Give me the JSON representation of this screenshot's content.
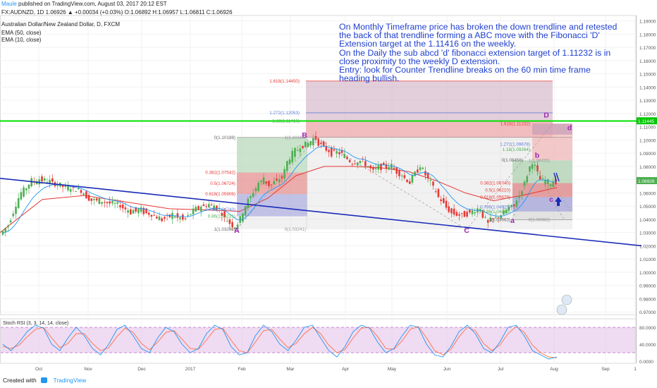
{
  "header": {
    "user": "Maule",
    "published": "published on TradingView.com, August 03, 2017 20:12 EST",
    "ohlc_line": "FX:AUDNZD, 1D  1.06926 ▲ +0.00034 (+0.03%) O:1.06892 H:1.06957 L:1.06811 C:1.06926"
  },
  "legend": {
    "symbol": "Australian Dollar/New Zealand Dollar, D, FXCM",
    "ema1": "EMA (50, close)",
    "ema2": "EMA (10, close)"
  },
  "annotation_lines": [
    "On Monthly Timeframe price has broken the down trendline and retested the back of that trendline forming a ABC move with the Fibonacci 'D' Extension target at the 1.11416 on the weekly.",
    "On the Daily the sub abcd 'd' fibonacci extension target of 1.11232 is in close proximity to the weekly D extension.",
    "Entry: look for Counter Trendline breaks on the 60 min time frame heading bullish."
  ],
  "footer": {
    "created_with": "Created with",
    "brand": "TradingView"
  },
  "colors": {
    "bull": "#4caf50",
    "bear": "#e53935",
    "ema50": "#e53935",
    "ema10": "#2196f3",
    "trend": "#1a2bb8",
    "green_line": "#00e000",
    "pattern": "#9c27b0",
    "rsi_k": "#2196f3",
    "rsi_d": "#ff7043"
  },
  "chart_data": [
    {
      "type": "candlestick",
      "symbol": "AUDNZD",
      "timeframe": "D",
      "y_axis_ticks": [
        "1.19000",
        "1.18000",
        "1.17000",
        "1.16000",
        "1.15000",
        "1.14000",
        "1.13000",
        "1.12000",
        "1.11000",
        "1.10000",
        "1.09000",
        "1.08000",
        "1.07000",
        "1.06000",
        "1.05000",
        "1.04000",
        "1.03000",
        "1.02000",
        "1.01000",
        "1.00000",
        "0.99000",
        "0.98000",
        "0.97000"
      ],
      "ylim": [
        0.968,
        1.194
      ],
      "x_axis_ticks": [
        "Oct",
        "Nov",
        "Dec",
        "2017",
        "Feb",
        "Mar",
        "Apr",
        "May",
        "Jun",
        "Jul",
        "Aug",
        "Sep"
      ],
      "last_price": "1.06926",
      "green_line_price": "1.11445",
      "price_path": [
        [
          0,
          1.027
        ],
        [
          12,
          1.035
        ],
        [
          30,
          1.058
        ],
        [
          45,
          1.068
        ],
        [
          60,
          1.07
        ],
        [
          75,
          1.068
        ],
        [
          95,
          1.064
        ],
        [
          115,
          1.062
        ],
        [
          130,
          1.055
        ],
        [
          150,
          1.053
        ],
        [
          170,
          1.051
        ],
        [
          185,
          1.046
        ],
        [
          200,
          1.047
        ],
        [
          215,
          1.044
        ],
        [
          230,
          1.04
        ],
        [
          245,
          1.043
        ],
        [
          262,
          1.04
        ],
        [
          280,
          1.048
        ],
        [
          295,
          1.051
        ],
        [
          310,
          1.049
        ],
        [
          322,
          1.04
        ],
        [
          335,
          1.034
        ],
        [
          342,
          1.04
        ],
        [
          350,
          1.05
        ],
        [
          358,
          1.058
        ],
        [
          366,
          1.065
        ],
        [
          374,
          1.07
        ],
        [
          384,
          1.066
        ],
        [
          394,
          1.069
        ],
        [
          402,
          1.072
        ],
        [
          409,
          1.083
        ],
        [
          418,
          1.09
        ],
        [
          428,
          1.095
        ],
        [
          438,
          1.097
        ],
        [
          448,
          1.101
        ],
        [
          457,
          1.096
        ],
        [
          470,
          1.091
        ],
        [
          485,
          1.09
        ],
        [
          500,
          1.083
        ],
        [
          515,
          1.084
        ],
        [
          530,
          1.077
        ],
        [
          542,
          1.08
        ],
        [
          555,
          1.08
        ],
        [
          568,
          1.075
        ],
        [
          582,
          1.068
        ],
        [
          597,
          1.08
        ],
        [
          611,
          1.069
        ],
        [
          625,
          1.056
        ],
        [
          640,
          1.046
        ],
        [
          654,
          1.043
        ],
        [
          668,
          1.045
        ],
        [
          681,
          1.048
        ],
        [
          692,
          1.038
        ],
        [
          700,
          1.04
        ],
        [
          712,
          1.043
        ],
        [
          722,
          1.048
        ],
        [
          730,
          1.05
        ],
        [
          738,
          1.058
        ],
        [
          746,
          1.068
        ],
        [
          752,
          1.078
        ],
        [
          756,
          1.082
        ],
        [
          761,
          1.079
        ],
        [
          767,
          1.071
        ],
        [
          774,
          1.069
        ],
        [
          782,
          1.067
        ],
        [
          790,
          1.069
        ]
      ],
      "ema50_path": [
        [
          0,
          1.03
        ],
        [
          60,
          1.055
        ],
        [
          120,
          1.058
        ],
        [
          180,
          1.053
        ],
        [
          240,
          1.048
        ],
        [
          300,
          1.047
        ],
        [
          340,
          1.046
        ],
        [
          380,
          1.056
        ],
        [
          420,
          1.073
        ],
        [
          460,
          1.08
        ],
        [
          500,
          1.08
        ],
        [
          540,
          1.079
        ],
        [
          580,
          1.076
        ],
        [
          620,
          1.069
        ],
        [
          660,
          1.06
        ],
        [
          700,
          1.054
        ],
        [
          740,
          1.058
        ],
        [
          790,
          1.064
        ]
      ],
      "trendlines": [
        {
          "from": [
            0.0,
            1.071
          ],
          "to": [
            910,
            1.02
          ]
        },
        {
          "from": [
            0.0,
            1.1143
          ],
          "to": [
            911,
            1.1143
          ]
        }
      ],
      "pattern_labels": [
        {
          "text": "A",
          "x": 336,
          "price": 1.032
        },
        {
          "text": "B",
          "x": 432,
          "price": 1.1038
        },
        {
          "text": "C",
          "x": 662,
          "price": 1.032
        },
        {
          "text": "D",
          "x": 775,
          "price": 1.119
        },
        {
          "text": "a",
          "x": 727,
          "price": 1.0395
        },
        {
          "text": "b",
          "x": 762,
          "price": 1.0888
        },
        {
          "text": "c",
          "x": 782,
          "price": 1.0555
        },
        {
          "text": "d",
          "x": 808,
          "price": 1.1095
        }
      ],
      "fib_labels": [
        {
          "text": "1.618(1.14450)",
          "x": 425,
          "price": 1.1445,
          "color": "#e53935"
        },
        {
          "text": "1.272(1.12053)",
          "x": 425,
          "price": 1.1205,
          "color": "#5c7bd9"
        },
        {
          "text": "1.18(1.11416)",
          "x": 425,
          "price": 1.1142,
          "color": "#4caf50"
        },
        {
          "text": "0(1.10188)",
          "x": 334,
          "price": 1.1019,
          "color": "#666666"
        },
        {
          "text": "1(1.10165)",
          "x": 434,
          "price": 1.1017,
          "color": "#999999"
        },
        {
          "text": "0.382(1.07542)",
          "x": 334,
          "price": 1.0754,
          "color": "#e53935"
        },
        {
          "text": "0.5(1.06724)",
          "x": 334,
          "price": 1.0672,
          "color": "#e53935"
        },
        {
          "text": "0.618(1.05906)",
          "x": 334,
          "price": 1.0591,
          "color": "#e53935"
        },
        {
          "text": "0.786(1.04743)",
          "x": 334,
          "price": 1.0474,
          "color": "#5c7bd9"
        },
        {
          "text": "0.86(1.04231)",
          "x": 334,
          "price": 1.0423,
          "color": "#4caf50"
        },
        {
          "text": "1(1.03260)",
          "x": 334,
          "price": 1.0326,
          "color": "#666666"
        },
        {
          "text": "0(1.03241)",
          "x": 434,
          "price": 1.0324,
          "color": "#999999"
        },
        {
          "text": "1.618(1.11232)",
          "x": 752,
          "price": 1.1123,
          "color": "#e53935"
        },
        {
          "text": "1.272(1.09678)",
          "x": 752,
          "price": 1.0968,
          "color": "#5c7bd9"
        },
        {
          "text": "1.18(1.09264)",
          "x": 752,
          "price": 1.0926,
          "color": "#4caf50"
        },
        {
          "text": "0(1.08456)",
          "x": 742,
          "price": 1.0846,
          "color": "#666666"
        },
        {
          "text": "1(1.08455)",
          "x": 780,
          "price": 1.0845,
          "color": "#999999"
        },
        {
          "text": "0.382(1.06740)",
          "x": 724,
          "price": 1.0674,
          "color": "#e53935"
        },
        {
          "text": "0.5(1.06210)",
          "x": 724,
          "price": 1.0621,
          "color": "#e53935"
        },
        {
          "text": "0.618(1.05679)",
          "x": 724,
          "price": 1.0568,
          "color": "#e53935"
        },
        {
          "text": "0.786(1.04925)",
          "x": 724,
          "price": 1.0492,
          "color": "#5c7bd9"
        },
        {
          "text": "0.86(1.04593)",
          "x": 724,
          "price": 1.0459,
          "color": "#4caf50"
        },
        {
          "text": "1(1.03963)",
          "x": 724,
          "price": 1.0396,
          "color": "#666666"
        },
        {
          "text": "0(1.03982)",
          "x": 780,
          "price": 1.0398,
          "color": "#999999"
        }
      ],
      "zones": [
        {
          "kind": "fib-projection",
          "x0": 434,
          "x1": 784,
          "p0": 1.1019,
          "p1": 1.1445,
          "fill": "#c8a0b8",
          "opacity": 0.5
        },
        {
          "kind": "ext-1618",
          "x0": 434,
          "x1": 784,
          "p0": 1.1019,
          "p1": 1.1142,
          "fill": "#f4b6b6",
          "opacity": 0.8
        },
        {
          "kind": "retr-box-A",
          "x0": 336,
          "x1": 436,
          "p0": 1.0326,
          "p1": 1.1019,
          "fill": "#dcdcdc",
          "opacity": 0.4
        },
        {
          "kind": "retr-red-A",
          "x0": 336,
          "x1": 436,
          "p0": 1.0591,
          "p1": 1.0754,
          "fill": "#e57373",
          "opacity": 0.55
        },
        {
          "kind": "retr-blue-A",
          "x0": 336,
          "x1": 436,
          "p0": 1.0423,
          "p1": 1.0591,
          "fill": "#9999dd",
          "opacity": 0.55
        },
        {
          "kind": "up-green-A",
          "x0": 336,
          "x1": 436,
          "p0": 1.0754,
          "p1": 1.1019,
          "fill": "#a5d6a7",
          "opacity": 0.5
        },
        {
          "kind": "proj-C",
          "x0": 434,
          "x1": 812,
          "p0": 1.0324,
          "p1": 1.1017,
          "fill": "#d0d0d0",
          "opacity": 0.3
        },
        {
          "kind": "sub-box",
          "x0": 727,
          "x1": 812,
          "p0": 1.0396,
          "p1": 1.0846,
          "fill": "#d0d0d0",
          "opacity": 0.45
        },
        {
          "kind": "sub-red",
          "x0": 727,
          "x1": 812,
          "p0": 1.0568,
          "p1": 1.0674,
          "fill": "#e57373",
          "opacity": 0.6
        },
        {
          "kind": "sub-blue",
          "x0": 727,
          "x1": 812,
          "p0": 1.0459,
          "p1": 1.0568,
          "fill": "#9999dd",
          "opacity": 0.6
        },
        {
          "kind": "sub-green",
          "x0": 727,
          "x1": 812,
          "p0": 1.0674,
          "p1": 1.0846,
          "fill": "#a5d6a7",
          "opacity": 0.55
        },
        {
          "kind": "sub-proj",
          "x0": 755,
          "x1": 812,
          "p0": 1.0846,
          "p1": 1.1123,
          "fill": "#f4b6b6",
          "opacity": 0.7
        },
        {
          "kind": "sub-proj-top",
          "x0": 755,
          "x1": 812,
          "p0": 1.104,
          "p1": 1.1123,
          "fill": "#c8a0b8",
          "opacity": 0.75
        }
      ]
    },
    {
      "type": "line",
      "title": "Stoch RSI (3, 3, 14, 14, close)",
      "y_axis_ticks": [
        "80.0000",
        "40.0000",
        "0.0000"
      ],
      "ylim": [
        -5,
        100
      ],
      "band": [
        20,
        80
      ],
      "series": [
        {
          "values": [
            40,
            25,
            45,
            70,
            85,
            78,
            40,
            25,
            55,
            80,
            60,
            30,
            15,
            40,
            75,
            85,
            60,
            30,
            20,
            55,
            80,
            70,
            40,
            20,
            30,
            65,
            85,
            75,
            35,
            15,
            20,
            60,
            85,
            70,
            40,
            25,
            50,
            80,
            85,
            55,
            25,
            10,
            35,
            70,
            85,
            78,
            45,
            20,
            30,
            60,
            85,
            80,
            40,
            15,
            10,
            35,
            70,
            85,
            65,
            30,
            20,
            45,
            80,
            85,
            60,
            25,
            15,
            5,
            10
          ]
        },
        {
          "values": [
            35,
            30,
            38,
            58,
            75,
            80,
            55,
            32,
            42,
            65,
            65,
            42,
            25,
            32,
            58,
            78,
            68,
            42,
            27,
            45,
            68,
            72,
            52,
            30,
            28,
            50,
            75,
            78,
            50,
            25,
            20,
            45,
            72,
            75,
            52,
            32,
            42,
            65,
            80,
            65,
            38,
            20,
            28,
            55,
            78,
            80,
            58,
            30,
            28,
            48,
            75,
            82,
            55,
            25,
            15,
            28,
            58,
            80,
            72,
            42,
            25,
            38,
            65,
            82,
            68,
            38,
            20,
            10,
            8
          ]
        }
      ],
      "x_axis_ticks": [
        "Oct",
        "Nov",
        "Dec",
        "2017",
        "Feb",
        "Mar",
        "Apr",
        "May",
        "Jun",
        "Jul",
        "Aug",
        "Sep",
        "1"
      ]
    }
  ]
}
